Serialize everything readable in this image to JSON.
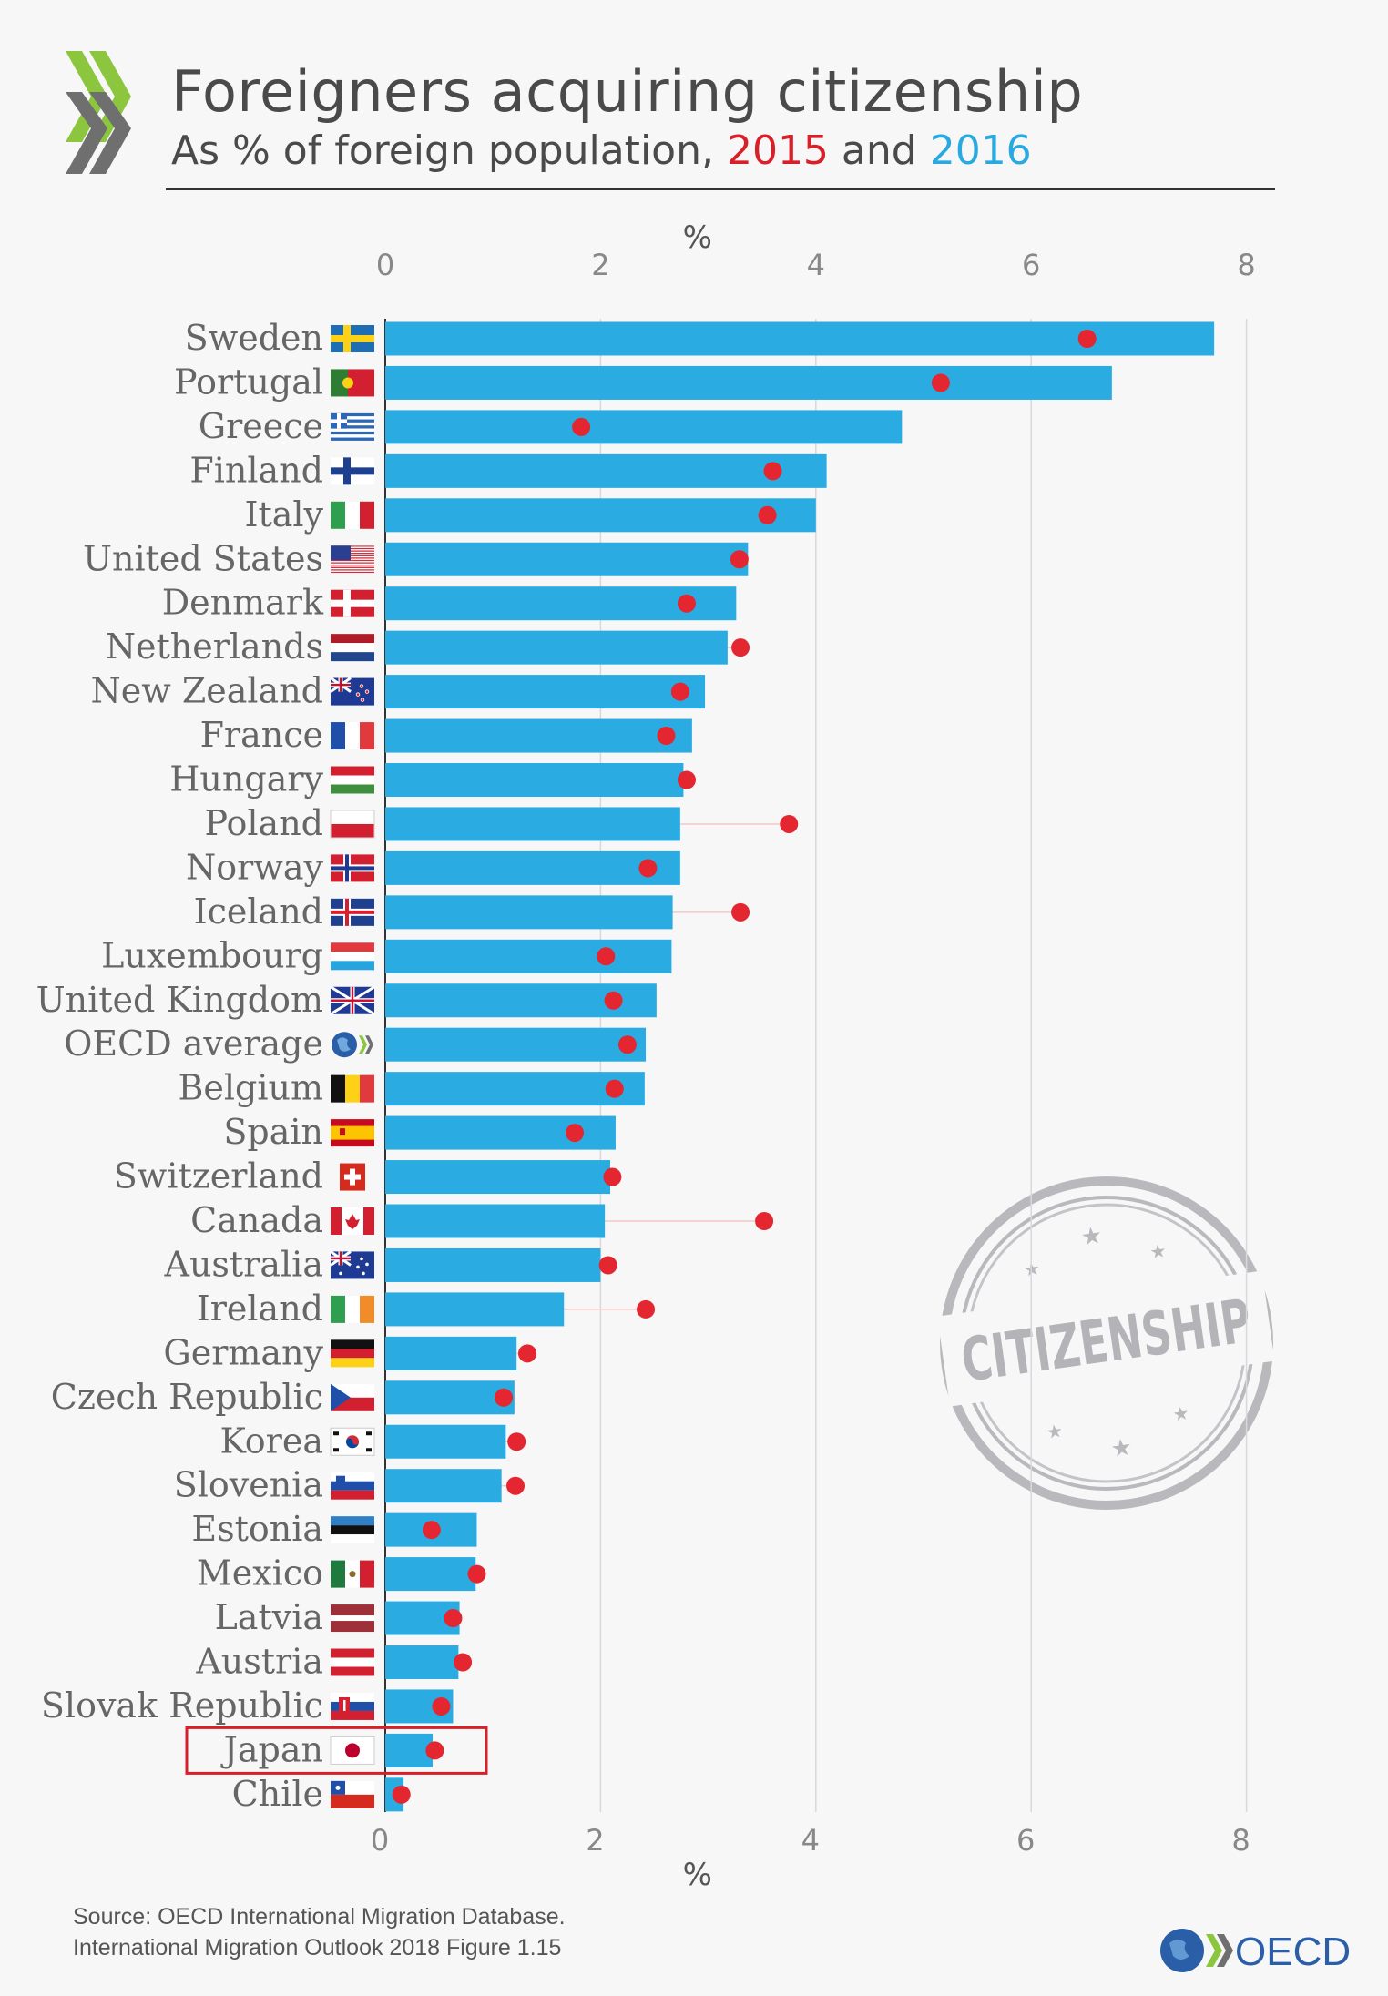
{
  "header": {
    "title": "Foreigners acquiring citizenship",
    "subtitle_prefix": "As % of foreign population, ",
    "year_2015": "2015",
    "subtitle_and": " and ",
    "year_2016": "2016"
  },
  "colors": {
    "bar_2016": "#2aabe2",
    "dot_2015": "#e3262f",
    "highlight_box": "#d7202a",
    "title_text": "#4a4a4a",
    "label_text": "#666666",
    "oecd_green": "#8cc63f",
    "oecd_blue": "#2a5fa8"
  },
  "chart_data": {
    "type": "bar",
    "orientation": "horizontal",
    "title": "Foreigners acquiring citizenship",
    "subtitle": "As % of foreign population, 2015 and 2016",
    "xlabel": "%",
    "xlim": [
      0,
      8
    ],
    "x_ticks": [
      "0",
      "2",
      "4",
      "6",
      "8"
    ],
    "grid": true,
    "highlighted_category": "Japan",
    "categories": [
      "Sweden",
      "Portugal",
      "Greece",
      "Finland",
      "Italy",
      "United States",
      "Denmark",
      "Netherlands",
      "New Zealand",
      "France",
      "Hungary",
      "Poland",
      "Norway",
      "Iceland",
      "Luxembourg",
      "United Kingdom",
      "OECD average",
      "Belgium",
      "Spain",
      "Switzerland",
      "Canada",
      "Australia",
      "Ireland",
      "Germany",
      "Czech Republic",
      "Korea",
      "Slovenia",
      "Estonia",
      "Mexico",
      "Latvia",
      "Austria",
      "Slovak Republic",
      "Japan",
      "Chile"
    ],
    "series": [
      {
        "name": "2016",
        "mark": "bar",
        "values": [
          7.7,
          6.75,
          4.8,
          4.1,
          4.0,
          3.37,
          3.26,
          3.18,
          2.97,
          2.85,
          2.77,
          2.74,
          2.74,
          2.67,
          2.66,
          2.52,
          2.42,
          2.41,
          2.14,
          2.09,
          2.04,
          2.0,
          1.66,
          1.22,
          1.2,
          1.12,
          1.08,
          0.85,
          0.84,
          0.69,
          0.68,
          0.63,
          0.44,
          0.17
        ]
      },
      {
        "name": "2015",
        "mark": "dot",
        "values": [
          6.52,
          5.16,
          1.82,
          3.6,
          3.55,
          3.29,
          2.8,
          3.3,
          2.74,
          2.61,
          2.8,
          3.75,
          2.44,
          3.3,
          2.05,
          2.12,
          2.25,
          2.13,
          1.76,
          2.11,
          3.52,
          2.07,
          2.42,
          1.32,
          1.1,
          1.22,
          1.21,
          0.43,
          0.85,
          0.63,
          0.72,
          0.52,
          0.46,
          0.15
        ]
      }
    ]
  },
  "stamp": {
    "text": "CITIZENSHIP"
  },
  "footer": {
    "source_line1": "Source: OECD International Migration Database.",
    "source_line2": "International Migration Outlook 2018 Figure 1.15",
    "logo_text": "OECD"
  }
}
